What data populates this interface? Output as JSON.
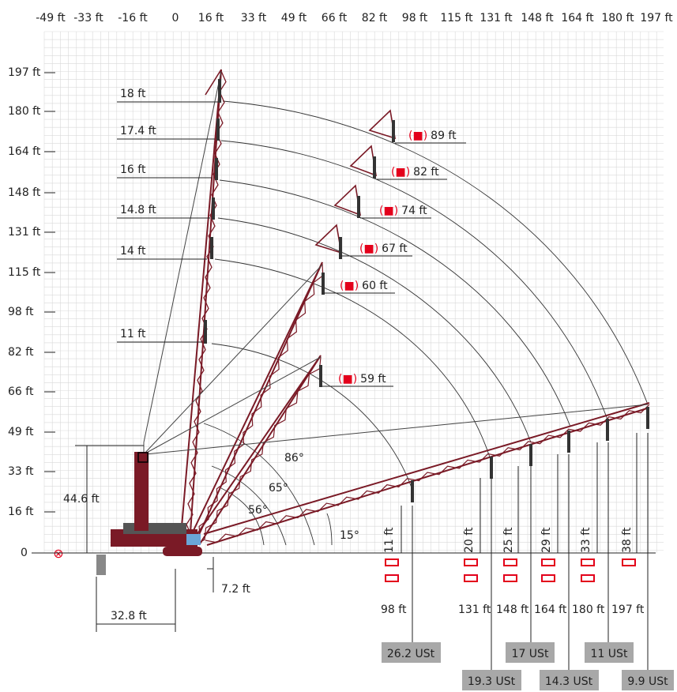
{
  "colors": {
    "grid": "#d9d9d9",
    "grid_major": "#b5b5b5",
    "crane": "#7a1a26",
    "accent": "#e3001b",
    "label_box": "#a8a8a8",
    "text": "#222222"
  },
  "axes": {
    "x_ticks": [
      "-49 ft",
      "-33 ft",
      "-16 ft",
      "0",
      "16 ft",
      "33 ft",
      "49 ft",
      "66 ft",
      "82 ft",
      "98 ft",
      "115 ft",
      "131 ft",
      "148 ft",
      "164 ft",
      "180 ft",
      "197 ft"
    ],
    "y_ticks": [
      "197 ft",
      "180 ft",
      "164 ft",
      "148 ft",
      "131 ft",
      "115 ft",
      "98 ft",
      "82  ft",
      "66 ft",
      "49 ft",
      "33 ft",
      "16 ft",
      "0"
    ]
  },
  "main_boom_radii": [
    "18 ft",
    "17.4 ft",
    "16 ft",
    "14.8 ft",
    "14 ft",
    "11 ft"
  ],
  "jib_lengths": [
    {
      "mark": "(■)",
      "length": "89 ft"
    },
    {
      "mark": "(■)",
      "length": "82 ft"
    },
    {
      "mark": "(■)",
      "length": "74 ft"
    },
    {
      "mark": "(■)",
      "length": "67 ft"
    },
    {
      "mark": "(■)",
      "length": "60 ft"
    },
    {
      "mark": "(■)",
      "length": "59 ft"
    }
  ],
  "angles": [
    "86°",
    "65°",
    "56°",
    "15°"
  ],
  "dimensions": {
    "height": "44.6 ft",
    "tail_radius": "32.8 ft",
    "offset": "7.2 ft"
  },
  "hook_heights": [
    "11 ft",
    "20 ft",
    "25 ft",
    "29 ft",
    "33 ft",
    "38 ft"
  ],
  "radii": [
    "98 ft",
    "131 ft",
    "148 ft",
    "164 ft",
    "180 ft",
    "197 ft"
  ],
  "capacities": [
    "26.2 USt",
    "19.3 USt",
    "17 USt",
    "14.3 USt",
    "11 USt",
    "9.9 USt"
  ],
  "origin_symbol": "⊗"
}
